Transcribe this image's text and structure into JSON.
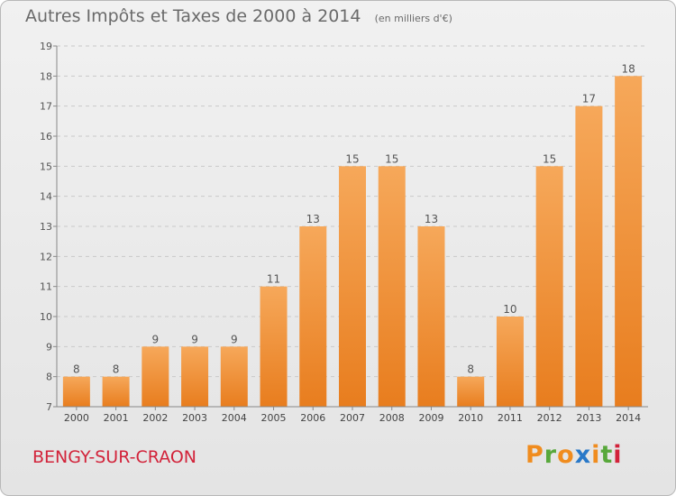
{
  "chart_data": {
    "type": "bar",
    "title": "Autres Impôts et Taxes de 2000 à 2014",
    "subtitle": "(en milliers d'€)",
    "categories": [
      "2000",
      "2001",
      "2002",
      "2003",
      "2004",
      "2005",
      "2006",
      "2007",
      "2008",
      "2009",
      "2010",
      "2011",
      "2012",
      "2013",
      "2014"
    ],
    "values": [
      8,
      8,
      9,
      9,
      9,
      11,
      13,
      15,
      15,
      13,
      8,
      10,
      15,
      17,
      18
    ],
    "ylim": [
      7,
      19
    ],
    "yticks": [
      7,
      8,
      9,
      10,
      11,
      12,
      13,
      14,
      15,
      16,
      17,
      18,
      19
    ],
    "xlabel": "",
    "ylabel": "",
    "grid": "dashed horizontal",
    "legend": "none",
    "bar_color": "#e87d1e",
    "bar_color_light": "#f6a85a"
  },
  "footer": {
    "commune": "BENGY-SUR-CRAON",
    "logo_letters": [
      "P",
      "r",
      "o",
      "x",
      "i",
      "t",
      "i"
    ],
    "logo_colors": [
      "#f08c1e",
      "#58a83b",
      "#f08c1e",
      "#2878c8",
      "#f08c1e",
      "#58a83b",
      "#d2233a"
    ]
  }
}
